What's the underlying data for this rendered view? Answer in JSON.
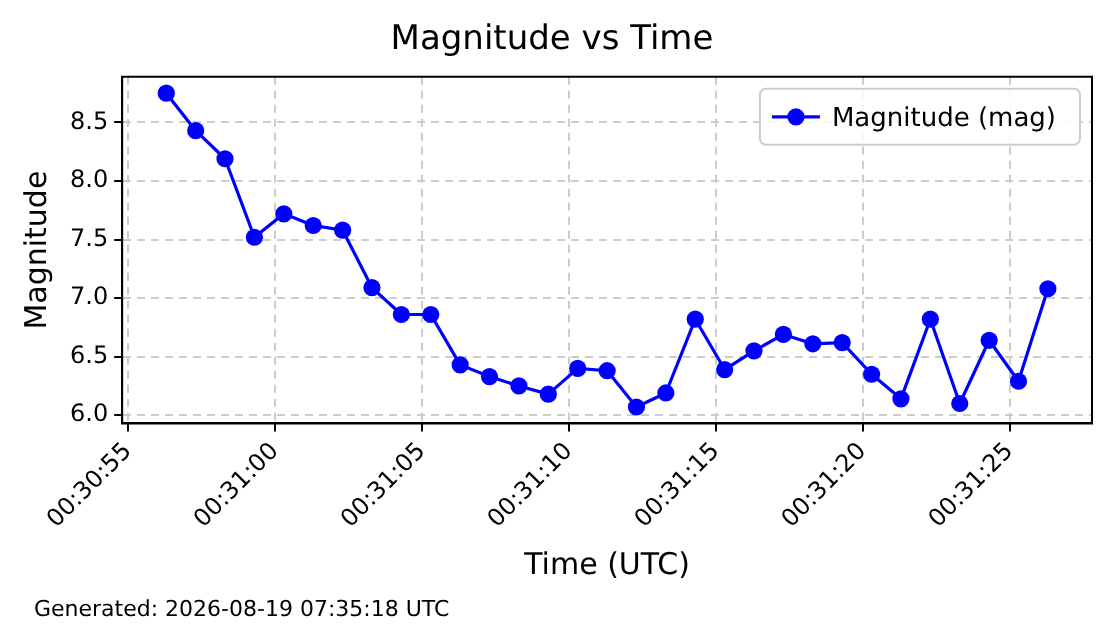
{
  "chart_data": {
    "type": "line",
    "title": "Magnitude vs Time",
    "xlabel": "Time (UTC)",
    "ylabel": "Magnitude",
    "x": [
      0.515639,
      0.515917,
      0.516194,
      0.516472,
      0.51675,
      0.517028,
      0.517306,
      0.517583,
      0.517861,
      0.518139,
      0.518417,
      0.518694,
      0.518972,
      0.51925,
      0.519528,
      0.519806,
      0.520083,
      0.520361,
      0.520639,
      0.520917,
      0.521194,
      0.521472,
      0.52175,
      0.522028,
      0.522306,
      0.522583,
      0.522861,
      0.523139,
      0.523417,
      0.523694,
      0.523972
    ],
    "series": [
      {
        "name": "Magnitude (mag)",
        "color": "#0000ff",
        "values": [
          8.75,
          8.43,
          8.19,
          7.52,
          7.72,
          7.62,
          7.58,
          7.09,
          6.86,
          6.86,
          6.43,
          6.33,
          6.25,
          6.18,
          6.4,
          6.38,
          6.07,
          6.19,
          6.82,
          6.39,
          6.55,
          6.69,
          6.61,
          6.62,
          6.35,
          6.14,
          6.82,
          6.1,
          6.64,
          6.29,
          7.08
        ]
      }
    ],
    "xlim": [
      0.515222,
      0.524389
    ],
    "xticks": [
      {
        "value": 0.515278,
        "label": "00:30:55"
      },
      {
        "value": 0.516667,
        "label": "00:31:00"
      },
      {
        "value": 0.518056,
        "label": "00:31:05"
      },
      {
        "value": 0.519444,
        "label": "00:31:10"
      },
      {
        "value": 0.520833,
        "label": "00:31:15"
      },
      {
        "value": 0.522222,
        "label": "00:31:20"
      },
      {
        "value": 0.523611,
        "label": "00:31:25"
      }
    ],
    "ylim": [
      5.93,
      8.89
    ],
    "yticks": [
      {
        "value": 6,
        "label": "6.0"
      },
      {
        "value": 6.5,
        "label": "6.5"
      },
      {
        "value": 7,
        "label": "7.0"
      },
      {
        "value": 7.5,
        "label": "7.5"
      },
      {
        "value": 8,
        "label": "8.0"
      },
      {
        "value": 8.5,
        "label": "8.5"
      }
    ],
    "grid": true,
    "legend": "top right",
    "marker": "circle",
    "line_style": "solid",
    "annotations": [
      "Generated: 2026-08-19 07:35:18 UTC"
    ]
  }
}
